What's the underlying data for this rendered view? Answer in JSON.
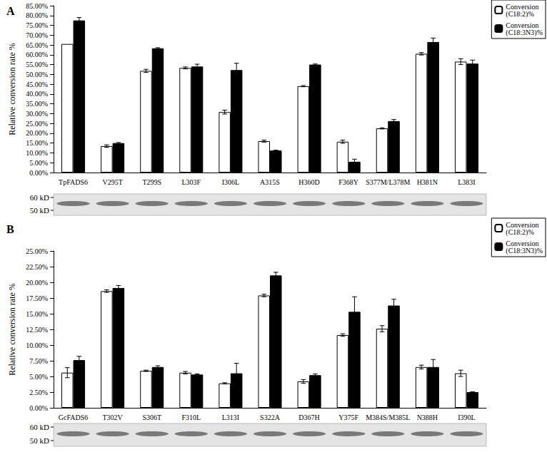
{
  "chart_data": [
    {
      "type": "bar",
      "title": "A",
      "ylabel": "Relative conversion rate %",
      "categories": [
        "TpFADS6",
        "V295T",
        "T299S",
        "L303F",
        "I306L",
        "A315S",
        "H360D",
        "F368Y",
        "S377M/L378M",
        "H381N",
        "L383I"
      ],
      "series": [
        {
          "name": "Conversion (C18:2)%",
          "color": "#ffffff",
          "values": [
            65.5,
            13.5,
            51.8,
            53.3,
            30.8,
            16.0,
            44.0,
            15.7,
            22.5,
            60.5,
            56.5
          ],
          "errors": [
            0,
            0.6,
            0.8,
            0.5,
            1.0,
            0.5,
            0.3,
            0.8,
            0.3,
            0.6,
            1.5
          ]
        },
        {
          "name": "Conversion (C18:3N3)%",
          "color": "#000000",
          "values": [
            77.5,
            15.0,
            63.3,
            54.0,
            52.2,
            11.2,
            55.0,
            5.5,
            26.2,
            66.5,
            55.5
          ],
          "errors": [
            1.5,
            0.3,
            0.3,
            1.2,
            3.5,
            0.2,
            0.3,
            1.3,
            0.8,
            2.0,
            1.8
          ]
        }
      ],
      "ylim": [
        0,
        85
      ],
      "yticks": [
        {
          "value": 0,
          "label": "0.00%"
        },
        {
          "value": 5,
          "label": "5.00%"
        },
        {
          "value": 10,
          "label": "10.00%"
        },
        {
          "value": 15,
          "label": "15.00%"
        },
        {
          "value": 20,
          "label": "20.00%"
        },
        {
          "value": 25,
          "label": "25.00%"
        },
        {
          "value": 30,
          "label": "30.00%"
        },
        {
          "value": 35,
          "label": "35.00%"
        },
        {
          "value": 40,
          "label": "40.00%"
        },
        {
          "value": 45,
          "label": "45.00%"
        },
        {
          "value": 50,
          "label": "50.00%"
        },
        {
          "value": 55,
          "label": "55.00%"
        },
        {
          "value": 60,
          "label": "60.00%"
        },
        {
          "value": 65,
          "label": "65.00%"
        },
        {
          "value": 70,
          "label": "70.00%"
        },
        {
          "value": 75,
          "label": "75.00%"
        },
        {
          "value": 80,
          "label": "80.00%"
        },
        {
          "value": 85,
          "label": "85.00%"
        }
      ],
      "grid": false,
      "legend": "upper right",
      "annotations": [
        "60 kD",
        "50 kD"
      ]
    },
    {
      "type": "bar",
      "title": "B",
      "ylabel": "Relative conversion rate %",
      "categories": [
        "GcFADS6",
        "T302V",
        "S306T",
        "F310L",
        "L313I",
        "S322A",
        "D367H",
        "Y375F",
        "M384S/M385L",
        "N388H",
        "I390L"
      ],
      "series": [
        {
          "name": "Conversion (C18:2)%",
          "color": "#ffffff",
          "values": [
            5.6,
            18.6,
            5.9,
            5.6,
            3.9,
            17.9,
            4.2,
            11.6,
            12.6,
            6.5,
            5.5
          ],
          "errors": [
            0.8,
            0.2,
            0.1,
            0.2,
            0.1,
            0.2,
            0.3,
            0.2,
            0.5,
            0.3,
            0.5
          ]
        },
        {
          "name": "Conversion (C18:3N3)%",
          "color": "#000000",
          "values": [
            7.6,
            19.1,
            6.5,
            5.3,
            5.5,
            21.1,
            5.2,
            15.3,
            16.3,
            6.5,
            2.5
          ],
          "errors": [
            0.6,
            0.4,
            0.2,
            0.1,
            1.6,
            0.5,
            0.2,
            2.4,
            1.0,
            1.2,
            0.05
          ]
        }
      ],
      "ylim": [
        0,
        25
      ],
      "yticks": [
        {
          "value": 0,
          "label": "0.00%"
        },
        {
          "value": 2.5,
          "label": "2.50%"
        },
        {
          "value": 5,
          "label": "5.00%"
        },
        {
          "value": 7.5,
          "label": "7.50%"
        },
        {
          "value": 10,
          "label": "10.00%"
        },
        {
          "value": 12.5,
          "label": "12.50%"
        },
        {
          "value": 15,
          "label": "15.00%"
        },
        {
          "value": 17.5,
          "label": "17.50%"
        },
        {
          "value": 20,
          "label": "20.00%"
        },
        {
          "value": 22.5,
          "label": "22.50%"
        },
        {
          "value": 25,
          "label": "25.00%"
        }
      ],
      "grid": false,
      "legend": "upper right",
      "annotations": [
        "60 kD",
        "50 kD"
      ]
    }
  ]
}
